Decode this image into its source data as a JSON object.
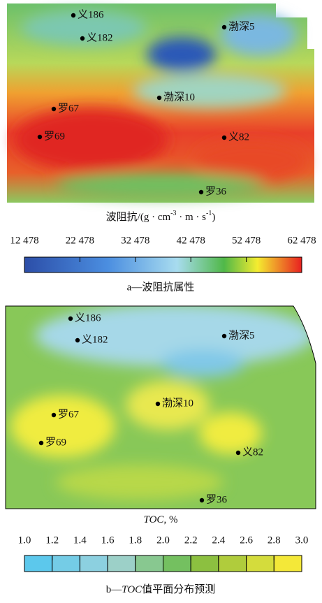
{
  "panels": [
    {
      "wells": [
        "义186",
        "义182",
        "渤深5",
        "渤深10",
        "罗67",
        "罗69",
        "义82",
        "罗36"
      ],
      "colorbar_label": [
        "波阻抗/(g · cm",
        "-3",
        " · m · s",
        "-1",
        ")"
      ],
      "ticks": [
        {
          "value": 12478,
          "label": "12 478"
        },
        {
          "value": 22478,
          "label": "22 478"
        },
        {
          "value": 32478,
          "label": "32 478"
        },
        {
          "value": 42478,
          "label": "42 478"
        },
        {
          "value": 52478,
          "label": "52 478"
        },
        {
          "value": 62478,
          "label": "62 478"
        }
      ],
      "caption": [
        "a—波阻抗属性"
      ]
    },
    {
      "wells": [
        "义186",
        "义182",
        "渤深5",
        "渤深10",
        "罗67",
        "罗69",
        "义82",
        "罗36"
      ],
      "colorbar_label": [
        "TOC",
        ", %"
      ],
      "ticks": [
        {
          "value": 1,
          "label": "1.0"
        },
        {
          "value": 1.2,
          "label": "1.2"
        },
        {
          "value": 1.4,
          "label": "1.4"
        },
        {
          "value": 1.6,
          "label": "1.6"
        },
        {
          "value": 1.8,
          "label": "1.8"
        },
        {
          "value": 2,
          "label": "2.0"
        },
        {
          "value": 2.2,
          "label": "2.2"
        },
        {
          "value": 2.4,
          "label": "2.4"
        },
        {
          "value": 2.6,
          "label": "2.6"
        },
        {
          "value": 2.8,
          "label": "2.8"
        },
        {
          "value": 3,
          "label": "3.0"
        }
      ],
      "caption": [
        "b—",
        "TOC",
        "值平面分布预测"
      ]
    }
  ]
}
